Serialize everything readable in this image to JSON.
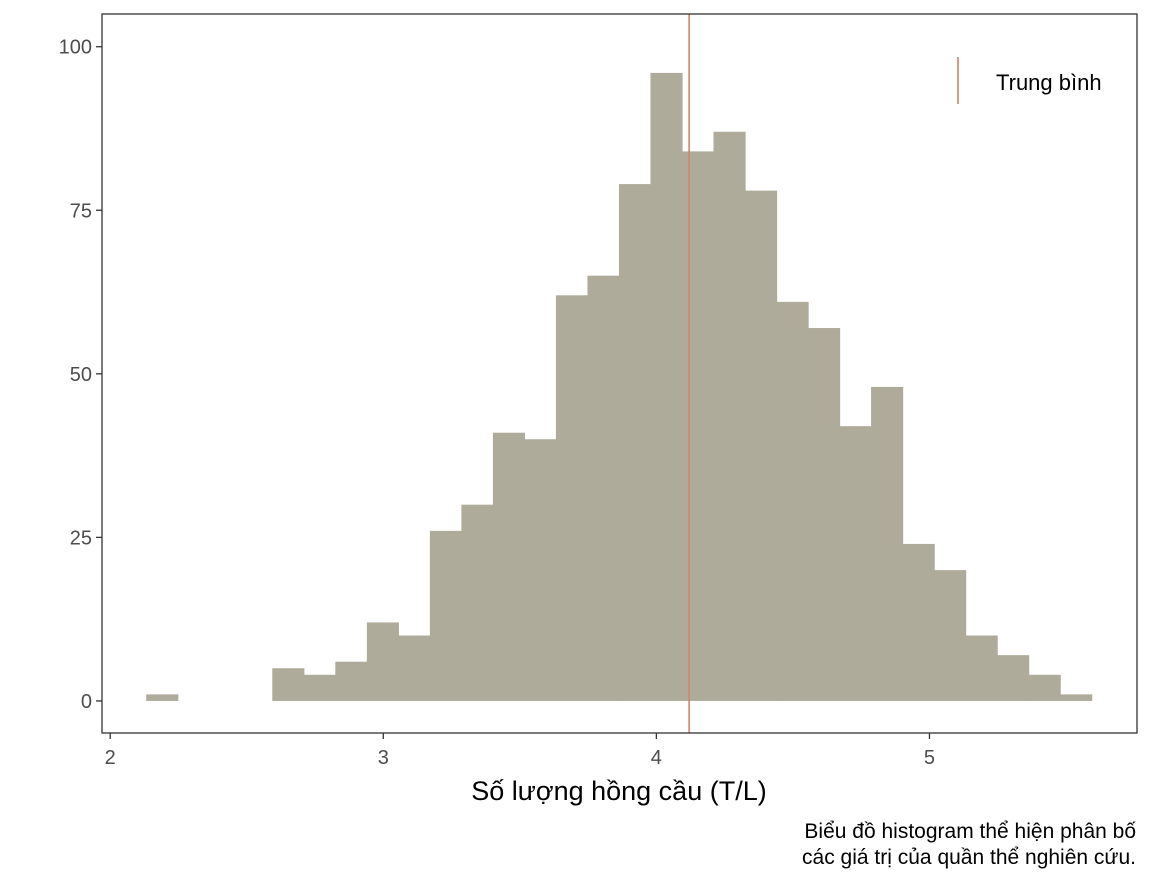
{
  "chart_data": {
    "type": "bar",
    "subtype": "histogram",
    "title": "",
    "xlabel": "Số lượng hồng cầu (T/L)",
    "ylabel": "",
    "xlim": [
      1.97,
      5.76
    ],
    "ylim": [
      -4.9,
      105
    ],
    "x_ticks": [
      2,
      3,
      4,
      5
    ],
    "y_ticks": [
      0,
      25,
      50,
      75,
      100
    ],
    "x_tick_labels": [
      "2",
      "3",
      "4",
      "5"
    ],
    "y_tick_labels": [
      "0",
      "25",
      "50",
      "75",
      "100"
    ],
    "grid": false,
    "bin_width": 0.1154,
    "bin_start": 2.132,
    "counts": [
      1,
      0,
      0,
      0,
      5,
      4,
      6,
      12,
      10,
      26,
      30,
      41,
      40,
      62,
      65,
      79,
      96,
      84,
      87,
      78,
      61,
      57,
      42,
      48,
      24,
      20,
      10,
      7,
      4,
      1
    ],
    "bar_color": "#aeab9a",
    "mean_line": {
      "x": 4.12,
      "color": "#d5836b",
      "label": "Trung bình"
    },
    "legend": {
      "placement": "top-right",
      "entries": [
        "Trung bình"
      ]
    },
    "caption_lines": [
      "Biểu đồ histogram thể hiện phân bố",
      "các giá trị của quần thể nghiên cứu."
    ]
  }
}
